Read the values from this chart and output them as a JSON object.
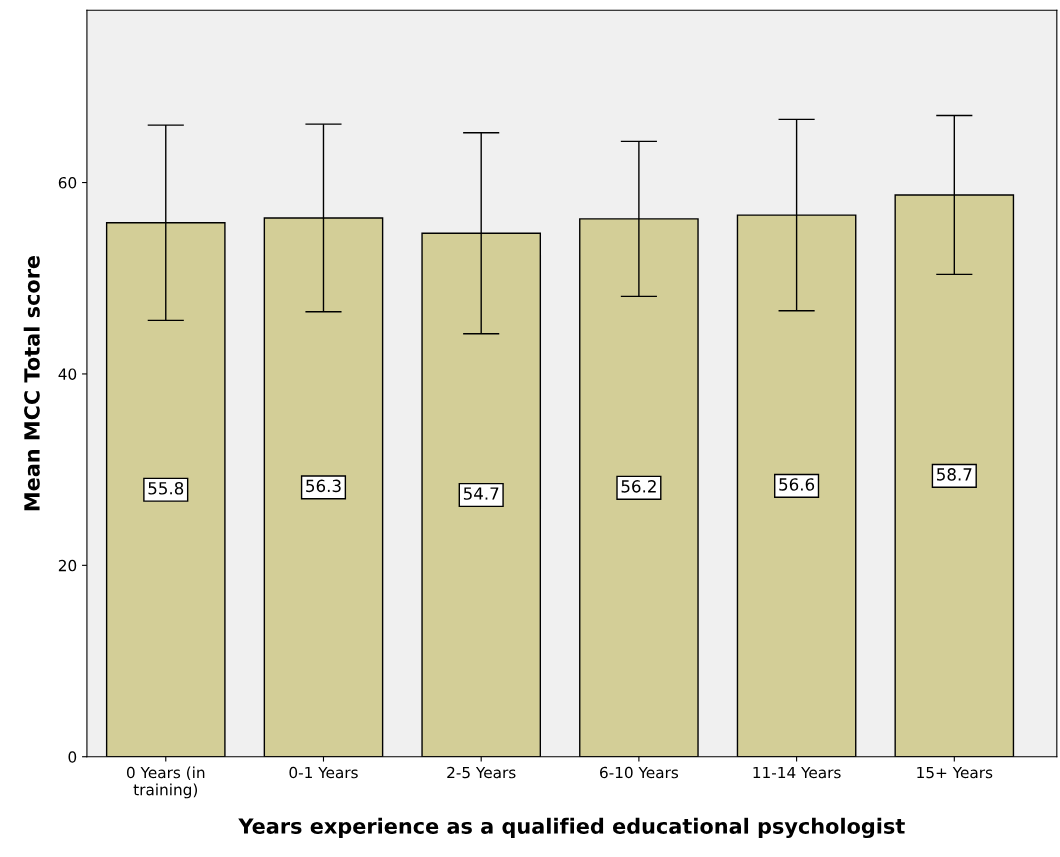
{
  "chart_data": {
    "type": "bar",
    "xlabel": "Years experience as a qualified educational psychologist",
    "ylabel": "Mean MCC Total score",
    "categories": [
      "0 Years (in\ntraining)",
      "0-1 Years",
      "2-5 Years",
      "6-10 Years",
      "11-14 Years",
      "15+ Years"
    ],
    "values": [
      55.8,
      56.3,
      54.7,
      56.2,
      56.6,
      58.7
    ],
    "errors": [
      10.2,
      9.8,
      10.5,
      8.1,
      10.0,
      8.3
    ],
    "color": "#d3ce97",
    "ylim": [
      0,
      78
    ],
    "yticks": [
      0,
      20,
      40,
      60
    ],
    "grid": false,
    "legend": false,
    "data_labels": true
  }
}
